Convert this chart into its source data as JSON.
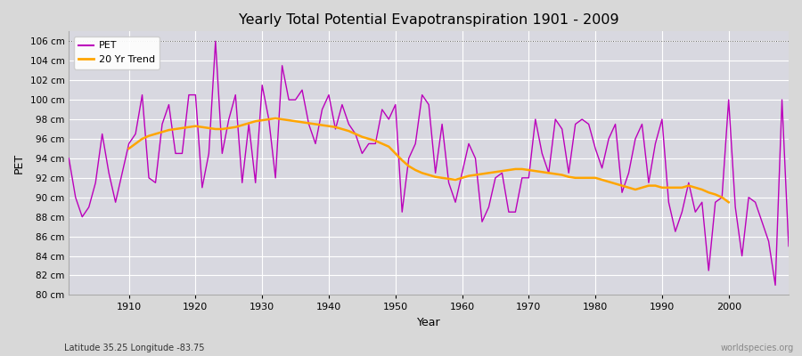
{
  "title": "Yearly Total Potential Evapotranspiration 1901 - 2009",
  "xlabel": "Year",
  "ylabel": "PET",
  "subtitle_left": "Latitude 35.25 Longitude -83.75",
  "subtitle_right": "worldspecies.org",
  "pet_color": "#bb00bb",
  "trend_color": "#ffa500",
  "fig_bg_color": "#d8d8d8",
  "plot_bg_color": "#d8d8e0",
  "ylim": [
    80,
    107
  ],
  "yticks": [
    80,
    82,
    84,
    86,
    88,
    90,
    92,
    94,
    96,
    98,
    100,
    102,
    104,
    106
  ],
  "ytick_labels": [
    "80 cm",
    "82 cm",
    "84 cm",
    "86 cm",
    "88 cm",
    "90 cm",
    "92 cm",
    "94 cm",
    "96 cm",
    "98 cm",
    "100 cm",
    "102 cm",
    "104 cm",
    "106 cm"
  ],
  "xticks": [
    1910,
    1920,
    1930,
    1940,
    1950,
    1960,
    1970,
    1980,
    1990,
    2000
  ],
  "years": [
    1901,
    1902,
    1903,
    1904,
    1905,
    1906,
    1907,
    1908,
    1909,
    1910,
    1911,
    1912,
    1913,
    1914,
    1915,
    1916,
    1917,
    1918,
    1919,
    1920,
    1921,
    1922,
    1923,
    1924,
    1925,
    1926,
    1927,
    1928,
    1929,
    1930,
    1931,
    1932,
    1933,
    1934,
    1935,
    1936,
    1937,
    1938,
    1939,
    1940,
    1941,
    1942,
    1943,
    1944,
    1945,
    1946,
    1947,
    1948,
    1949,
    1950,
    1951,
    1952,
    1953,
    1954,
    1955,
    1956,
    1957,
    1958,
    1959,
    1960,
    1961,
    1962,
    1963,
    1964,
    1965,
    1966,
    1967,
    1968,
    1969,
    1970,
    1971,
    1972,
    1973,
    1974,
    1975,
    1976,
    1977,
    1978,
    1979,
    1980,
    1981,
    1982,
    1983,
    1984,
    1985,
    1986,
    1987,
    1988,
    1989,
    1990,
    1991,
    1992,
    1993,
    1994,
    1995,
    1996,
    1997,
    1998,
    1999,
    2000,
    2001,
    2002,
    2003,
    2004,
    2005,
    2006,
    2007,
    2008,
    2009
  ],
  "pet_values": [
    94.0,
    90.0,
    88.0,
    89.0,
    91.5,
    96.5,
    92.5,
    89.5,
    92.5,
    95.5,
    96.5,
    100.5,
    92.0,
    91.5,
    97.5,
    99.5,
    94.5,
    94.5,
    100.5,
    100.5,
    91.0,
    94.5,
    106.0,
    94.5,
    98.0,
    100.5,
    91.5,
    97.5,
    91.5,
    101.5,
    98.0,
    92.0,
    103.5,
    100.0,
    100.0,
    101.0,
    97.5,
    95.5,
    99.0,
    100.5,
    97.0,
    99.5,
    97.5,
    96.5,
    94.5,
    95.5,
    95.5,
    99.0,
    98.0,
    99.5,
    88.5,
    94.0,
    95.5,
    100.5,
    99.5,
    92.5,
    97.5,
    91.5,
    89.5,
    92.5,
    95.5,
    94.0,
    87.5,
    89.0,
    92.0,
    92.5,
    88.5,
    88.5,
    92.0,
    92.0,
    98.0,
    94.5,
    92.5,
    98.0,
    97.0,
    92.5,
    97.5,
    98.0,
    97.5,
    95.0,
    93.0,
    96.0,
    97.5,
    90.5,
    92.5,
    96.0,
    97.5,
    91.5,
    95.5,
    98.0,
    89.5,
    86.5,
    88.5,
    91.5,
    88.5,
    89.5,
    82.5,
    89.5,
    90.0,
    100.0,
    89.0,
    84.0,
    90.0,
    89.5,
    87.5,
    85.5,
    81.0,
    100.0,
    85.0
  ],
  "trend_years": [
    1910,
    1911,
    1912,
    1913,
    1914,
    1915,
    1916,
    1917,
    1918,
    1919,
    1920,
    1921,
    1922,
    1923,
    1924,
    1925,
    1926,
    1927,
    1928,
    1929,
    1930,
    1931,
    1932,
    1933,
    1934,
    1935,
    1936,
    1937,
    1938,
    1939,
    1940,
    1941,
    1942,
    1943,
    1944,
    1945,
    1946,
    1947,
    1948,
    1949,
    1950,
    1951,
    1952,
    1953,
    1954,
    1955,
    1956,
    1957,
    1958,
    1959,
    1960,
    1961,
    1962,
    1963,
    1964,
    1965,
    1966,
    1967,
    1968,
    1969,
    1970,
    1971,
    1972,
    1973,
    1974,
    1975,
    1976,
    1977,
    1978,
    1979,
    1980,
    1981,
    1982,
    1983,
    1984,
    1985,
    1986,
    1987,
    1988,
    1989,
    1990,
    1991,
    1992,
    1993,
    1994,
    1995,
    1996,
    1997,
    1998,
    1999,
    2000
  ],
  "trend_values": [
    95.0,
    95.5,
    96.0,
    96.3,
    96.5,
    96.7,
    96.9,
    97.0,
    97.1,
    97.2,
    97.3,
    97.2,
    97.1,
    97.0,
    97.0,
    97.1,
    97.2,
    97.4,
    97.6,
    97.8,
    97.9,
    98.0,
    98.1,
    98.0,
    97.9,
    97.8,
    97.7,
    97.6,
    97.5,
    97.4,
    97.3,
    97.2,
    97.0,
    96.8,
    96.5,
    96.2,
    96.0,
    95.8,
    95.5,
    95.2,
    94.5,
    93.8,
    93.2,
    92.8,
    92.5,
    92.3,
    92.1,
    92.0,
    91.9,
    91.8,
    92.0,
    92.2,
    92.3,
    92.4,
    92.5,
    92.6,
    92.7,
    92.8,
    92.9,
    92.9,
    92.8,
    92.7,
    92.6,
    92.5,
    92.4,
    92.3,
    92.1,
    92.0,
    92.0,
    92.0,
    92.0,
    91.8,
    91.6,
    91.4,
    91.2,
    91.0,
    90.8,
    91.0,
    91.2,
    91.2,
    91.0,
    91.0,
    91.0,
    91.0,
    91.2,
    91.0,
    90.8,
    90.5,
    90.3,
    90.0,
    89.5
  ]
}
